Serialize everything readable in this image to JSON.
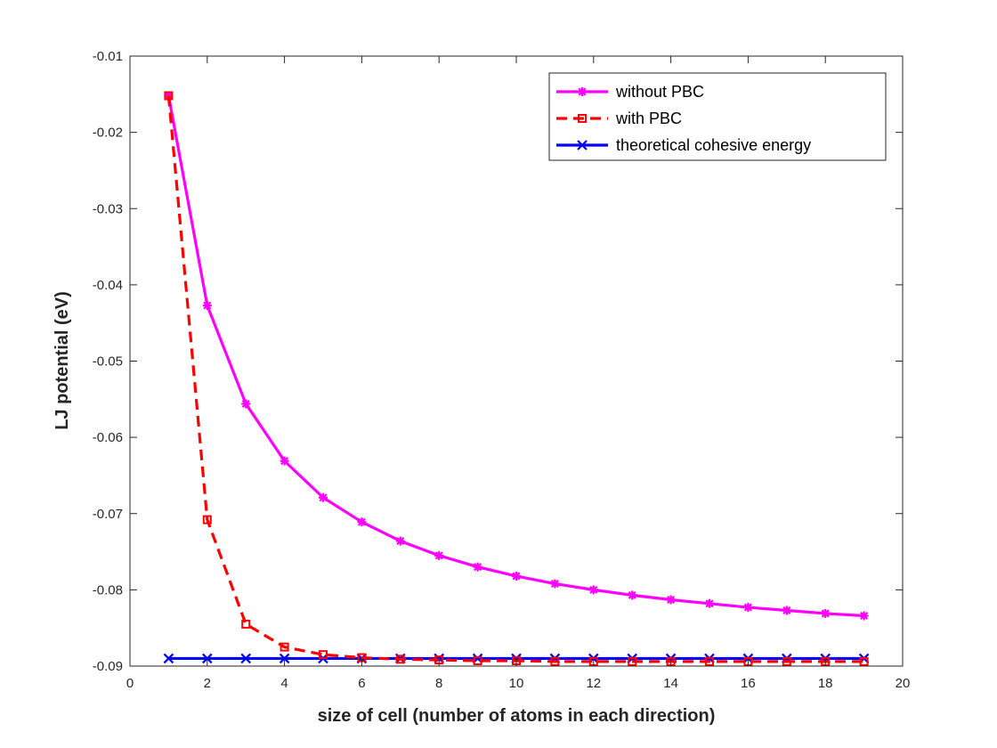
{
  "chart_data": {
    "type": "line",
    "title": "",
    "xlabel": "size of cell (number of atoms in each direction)",
    "ylabel": "LJ potential (eV)",
    "xlim": [
      0,
      20
    ],
    "ylim": [
      -0.09,
      -0.01
    ],
    "xticks": [
      0,
      2,
      4,
      6,
      8,
      10,
      12,
      14,
      16,
      18,
      20
    ],
    "xtick_labels": [
      "0",
      "2",
      "4",
      "6",
      "8",
      "10",
      "12",
      "14",
      "16",
      "18",
      "20"
    ],
    "yticks": [
      -0.09,
      -0.08,
      -0.07,
      -0.06,
      -0.05,
      -0.04,
      -0.03,
      -0.02,
      -0.01
    ],
    "ytick_labels": [
      "-0.09",
      "-0.08",
      "-0.07",
      "-0.06",
      "-0.05",
      "-0.04",
      "-0.03",
      "-0.02",
      "-0.01"
    ],
    "grid": false,
    "legend_position": "top-right",
    "x": [
      1,
      2,
      3,
      4,
      5,
      6,
      7,
      8,
      9,
      10,
      11,
      12,
      13,
      14,
      15,
      16,
      17,
      18,
      19
    ],
    "series": [
      {
        "name": "without PBC",
        "color": "#ff00ff",
        "line_style": "solid",
        "marker": "asterisk",
        "values": [
          -0.0152,
          -0.0427,
          -0.0556,
          -0.0631,
          -0.0679,
          -0.0711,
          -0.0736,
          -0.0755,
          -0.077,
          -0.0782,
          -0.0792,
          -0.08,
          -0.0807,
          -0.0813,
          -0.0818,
          -0.0823,
          -0.0827,
          -0.0831,
          -0.0834
        ]
      },
      {
        "name": "with PBC",
        "color": "#ff0000",
        "line_style": "dashed",
        "marker": "square",
        "values": [
          -0.0152,
          -0.0708,
          -0.0845,
          -0.0875,
          -0.0885,
          -0.0889,
          -0.0891,
          -0.0892,
          -0.0893,
          -0.0893,
          -0.0894,
          -0.0894,
          -0.0894,
          -0.0894,
          -0.0894,
          -0.0894,
          -0.0894,
          -0.0894,
          -0.0894
        ]
      },
      {
        "name": "theoretical cohesive energy",
        "color": "#0000ff",
        "line_style": "solid",
        "marker": "x",
        "values": [
          -0.089,
          -0.089,
          -0.089,
          -0.089,
          -0.089,
          -0.089,
          -0.089,
          -0.089,
          -0.089,
          -0.089,
          -0.089,
          -0.089,
          -0.089,
          -0.089,
          -0.089,
          -0.089,
          -0.089,
          -0.089,
          -0.089
        ]
      }
    ]
  }
}
